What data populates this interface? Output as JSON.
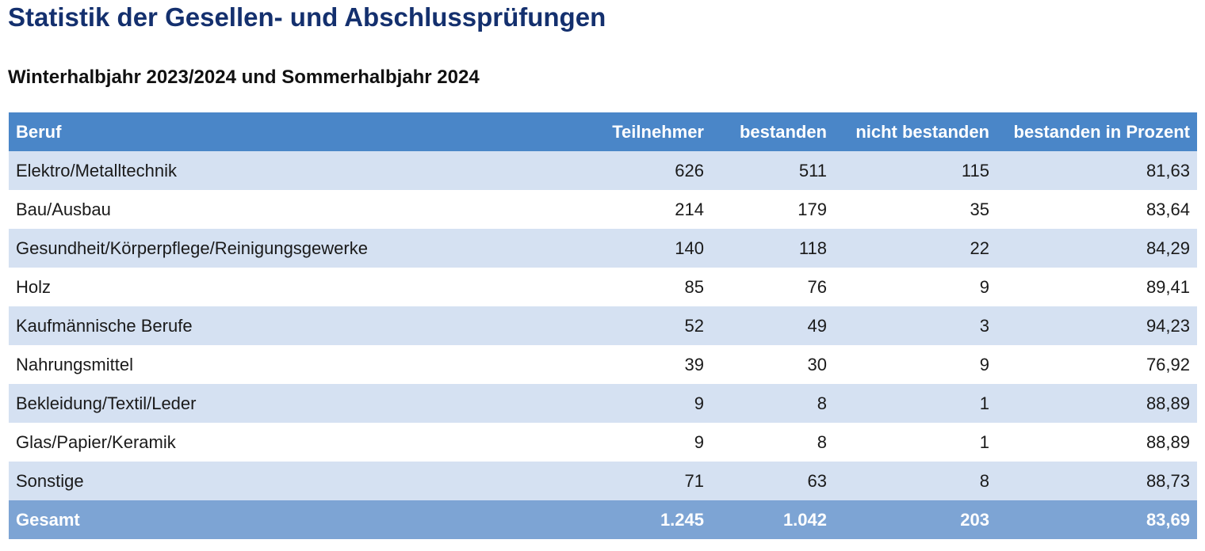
{
  "title": "Statistik der Gesellen- und Abschlussprüfungen",
  "subtitle": "Winterhalbjahr 2023/2024 und Sommerhalbjahr 2024",
  "table": {
    "headers": [
      "Beruf",
      "Teilnehmer",
      "bestanden",
      "nicht bestanden",
      "bestanden in Prozent"
    ],
    "rows": [
      [
        "Elektro/Metalltechnik",
        "626",
        "511",
        "115",
        "81,63"
      ],
      [
        "Bau/Ausbau",
        "214",
        "179",
        "35",
        "83,64"
      ],
      [
        "Gesundheit/Körperpflege/Reinigungsgewerke",
        "140",
        "118",
        "22",
        "84,29"
      ],
      [
        "Holz",
        "85",
        "76",
        "9",
        "89,41"
      ],
      [
        "Kaufmännische Berufe",
        "52",
        "49",
        "3",
        "94,23"
      ],
      [
        "Nahrungsmittel",
        "39",
        "30",
        "9",
        "76,92"
      ],
      [
        "Bekleidung/Textil/Leder",
        "9",
        "8",
        "1",
        "88,89"
      ],
      [
        "Glas/Papier/Keramik",
        "9",
        "8",
        "1",
        "88,89"
      ],
      [
        "Sonstige",
        "71",
        "63",
        "8",
        "88,73"
      ]
    ],
    "total": [
      "Gesamt",
      "1.245",
      "1.042",
      "203",
      "83,69"
    ]
  },
  "colors": {
    "title": "#14306e",
    "header_bg": "#4a86c8",
    "row_alt_bg": "#d5e1f2",
    "total_bg": "#7da4d4"
  }
}
